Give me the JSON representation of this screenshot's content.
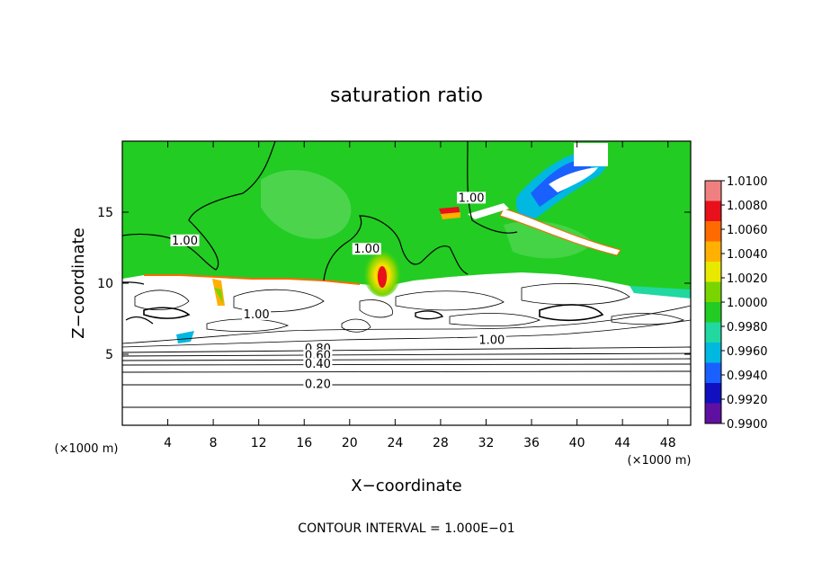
{
  "chart_data": {
    "type": "heatmap",
    "title": "saturation ratio",
    "xlabel": "X−coordinate",
    "ylabel": "Z−coordinate",
    "x_unit_left": "(×1000 m)",
    "x_unit_right": "(×1000 m)",
    "footer": "CONTOUR INTERVAL = 1.000E−01",
    "xlim": [
      0,
      50
    ],
    "ylim": [
      0,
      20
    ],
    "x_ticks": [
      4,
      8,
      12,
      16,
      20,
      24,
      28,
      32,
      36,
      40,
      44,
      48
    ],
    "y_ticks": [
      5,
      10,
      15
    ],
    "colorbar": {
      "min": 0.99,
      "max": 1.01,
      "labels": [
        "1.0100",
        "1.0080",
        "1.0060",
        "1.0040",
        "1.0020",
        "1.0000",
        "0.9980",
        "0.9960",
        "0.9940",
        "0.9920",
        "0.9900"
      ],
      "colors": [
        "#f08080",
        "#e8101a",
        "#ff6a00",
        "#ffb000",
        "#e8e800",
        "#7ad400",
        "#22cc22",
        "#20d8a0",
        "#00b8e0",
        "#1a60ff",
        "#1010c0",
        "#6010a0"
      ]
    },
    "contour_labels": [
      {
        "text": "1.00",
        "x": 5.5,
        "z": 12.8
      },
      {
        "text": "1.00",
        "x": 21.5,
        "z": 12.2
      },
      {
        "text": "1.00",
        "x": 30.7,
        "z": 15.8
      },
      {
        "text": "1.00",
        "x": 11.8,
        "z": 7.6
      },
      {
        "text": "1.00",
        "x": 32.5,
        "z": 5.8
      },
      {
        "text": "0.80",
        "x": 17.2,
        "z": 5.2
      },
      {
        "text": "0.60",
        "x": 17.2,
        "z": 4.7
      },
      {
        "text": "0.40",
        "x": 17.2,
        "z": 4.1
      },
      {
        "text": "0.20",
        "x": 17.2,
        "z": 2.7
      }
    ],
    "grid": false,
    "legend": "right colorbar"
  }
}
